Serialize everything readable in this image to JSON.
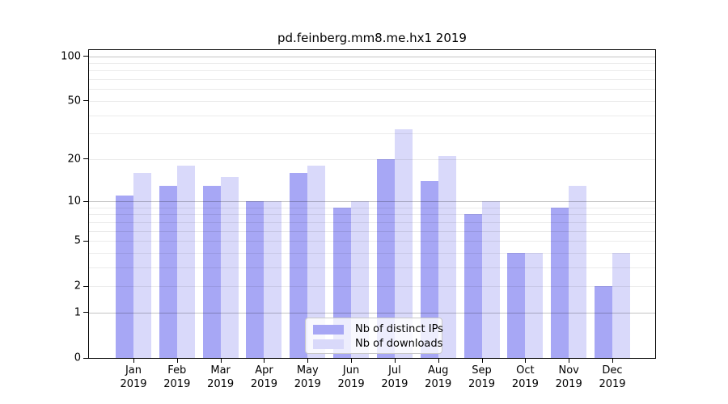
{
  "chart_data": {
    "type": "bar",
    "title": "pd.feinberg.mm8.me.hx1 2019",
    "year": "2019",
    "months": [
      "Jan",
      "Feb",
      "Mar",
      "Apr",
      "May",
      "Jun",
      "Jul",
      "Aug",
      "Sep",
      "Oct",
      "Nov",
      "Dec"
    ],
    "series": [
      {
        "name": "Nb of distinct IPs",
        "color": "#a7a7f5",
        "values": [
          11,
          13,
          13,
          10,
          16,
          9,
          20,
          14,
          8,
          4,
          9,
          2
        ]
      },
      {
        "name": "Nb of downloads",
        "color": "#d9d9fa",
        "values": [
          16,
          18,
          15,
          10,
          18,
          10,
          32,
          21,
          10,
          4,
          13,
          4
        ]
      }
    ],
    "xlabel": "",
    "ylabel": "",
    "y_axis": {
      "scale": "log1p",
      "range": [
        0,
        110
      ],
      "tick_labels": [
        100,
        50,
        20,
        10,
        5,
        2,
        1,
        0
      ],
      "emphasized_gridlines": [
        1,
        10,
        100
      ],
      "minor_gridlines": [
        3,
        4,
        6,
        7,
        8,
        9,
        30,
        40,
        60,
        70,
        80,
        90
      ]
    },
    "grid": true,
    "legend_position": "lower center-left inside plot"
  },
  "colors": {
    "background": "#ffffff",
    "axis": "#000000",
    "series_ips": "#a7a7f5",
    "series_downloads": "#d9d9fa"
  }
}
